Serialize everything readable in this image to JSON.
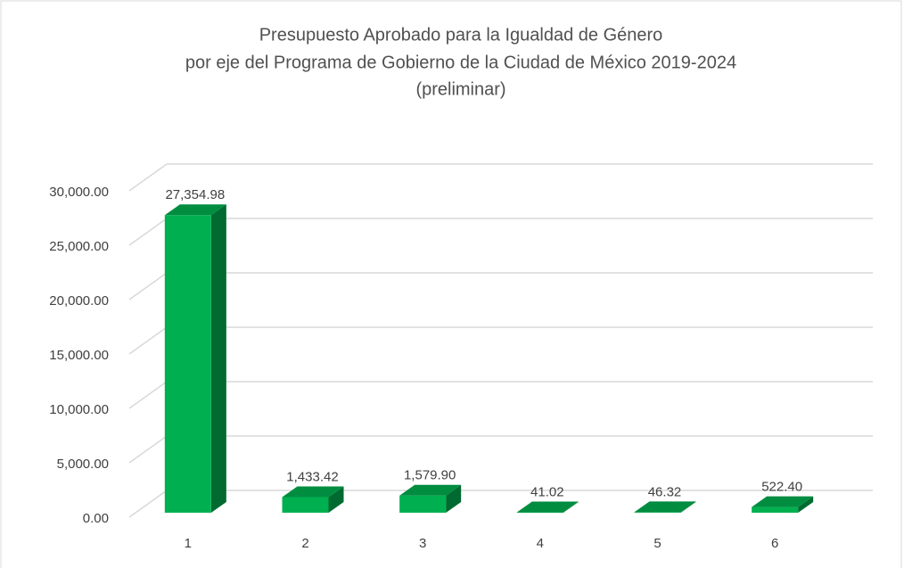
{
  "chart_data": {
    "type": "bar3d",
    "title": [
      "Presupuesto Aprobado para la Igualdad de Género",
      "por eje del Programa de Gobierno de la Ciudad de México 2019-2024",
      "(preliminar)"
    ],
    "categories": [
      "1",
      "2",
      "3",
      "4",
      "5",
      "6"
    ],
    "values": [
      27354.98,
      1433.42,
      1579.9,
      41.02,
      46.32,
      522.4
    ],
    "value_labels": [
      "27,354.98",
      "1,433.42",
      "1,579.90",
      "41.02",
      "46.32",
      "522.40"
    ],
    "color": "#00b050",
    "ylim": [
      0,
      30000
    ],
    "yticks": [
      {
        "value": 0,
        "label": "0.00"
      },
      {
        "value": 5000,
        "label": "5,000.00"
      },
      {
        "value": 10000,
        "label": "10,000.00"
      },
      {
        "value": 15000,
        "label": "15,000.00"
      },
      {
        "value": 20000,
        "label": "20,000.00"
      },
      {
        "value": 25000,
        "label": "25,000.00"
      },
      {
        "value": 30000,
        "label": "30,000.00"
      }
    ],
    "grid": true
  }
}
